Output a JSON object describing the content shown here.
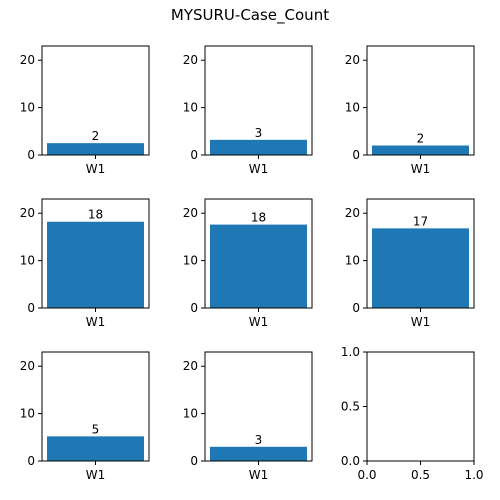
{
  "figure": {
    "title": "MYSURU-Case_Count",
    "bar_color": "#1f77b4"
  },
  "chart_data": [
    {
      "type": "bar",
      "categories": [
        "W1"
      ],
      "values": [
        2.5
      ],
      "data_labels": [
        "2"
      ],
      "ylim": [
        0,
        23
      ],
      "yticks": [
        0,
        10,
        20
      ]
    },
    {
      "type": "bar",
      "categories": [
        "W1"
      ],
      "values": [
        3.2
      ],
      "data_labels": [
        "3"
      ],
      "ylim": [
        0,
        23
      ],
      "yticks": [
        0,
        10,
        20
      ]
    },
    {
      "type": "bar",
      "categories": [
        "W1"
      ],
      "values": [
        2.0
      ],
      "data_labels": [
        "2"
      ],
      "ylim": [
        0,
        23
      ],
      "yticks": [
        0,
        10,
        20
      ]
    },
    {
      "type": "bar",
      "categories": [
        "W1"
      ],
      "values": [
        18.2
      ],
      "data_labels": [
        "18"
      ],
      "ylim": [
        0,
        23
      ],
      "yticks": [
        0,
        10,
        20
      ]
    },
    {
      "type": "bar",
      "categories": [
        "W1"
      ],
      "values": [
        17.6
      ],
      "data_labels": [
        "18"
      ],
      "ylim": [
        0,
        23
      ],
      "yticks": [
        0,
        10,
        20
      ]
    },
    {
      "type": "bar",
      "categories": [
        "W1"
      ],
      "values": [
        16.8
      ],
      "data_labels": [
        "17"
      ],
      "ylim": [
        0,
        23
      ],
      "yticks": [
        0,
        10,
        20
      ]
    },
    {
      "type": "bar",
      "categories": [
        "W1"
      ],
      "values": [
        5.2
      ],
      "data_labels": [
        "5"
      ],
      "ylim": [
        0,
        23
      ],
      "yticks": [
        0,
        10,
        20
      ]
    },
    {
      "type": "bar",
      "categories": [
        "W1"
      ],
      "values": [
        3.0
      ],
      "data_labels": [
        "3"
      ],
      "ylim": [
        0,
        23
      ],
      "yticks": [
        0,
        10,
        20
      ]
    },
    {
      "type": "empty",
      "xlim": [
        0,
        1
      ],
      "ylim": [
        0,
        1
      ],
      "xticks": [
        0.0,
        0.5,
        1.0
      ],
      "xtick_labels": [
        "0.0",
        "0.5",
        "1.0"
      ],
      "yticks": [
        0.0,
        0.5,
        1.0
      ],
      "ytick_labels": [
        "0.0",
        "0.5",
        "1.0"
      ]
    }
  ]
}
